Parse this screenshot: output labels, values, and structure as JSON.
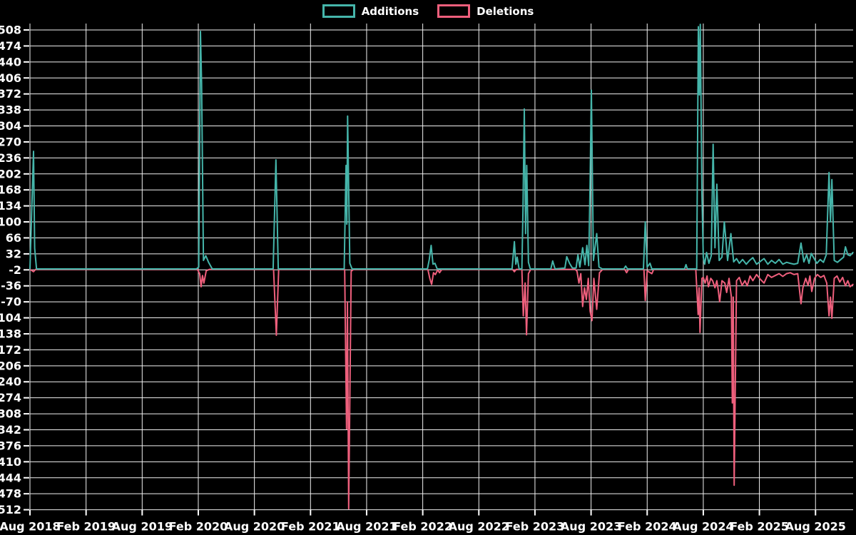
{
  "colors": {
    "background": "#000000",
    "grid": "#f2f2f2",
    "tick_text": "#ffffff",
    "additions": "#45b5aa",
    "deletions": "#ee5f7c"
  },
  "chart_data": {
    "type": "line",
    "title": "",
    "xlabel": "",
    "ylabel": "",
    "grid": true,
    "legend_position": "top-center",
    "x_unit": "months since Aug 2018 (weekly commit activity)",
    "ylim": [
      -512,
      508
    ],
    "y_ticks": [
      508,
      474,
      440,
      406,
      372,
      338,
      304,
      270,
      236,
      202,
      168,
      134,
      100,
      66,
      32,
      -2,
      -36,
      -70,
      -104,
      -138,
      -172,
      -206,
      -240,
      -274,
      -308,
      -342,
      -376,
      -410,
      -444,
      -478,
      -512
    ],
    "x_ticks": [
      {
        "label": "Aug 2018",
        "month": 0
      },
      {
        "label": "Feb 2019",
        "month": 6
      },
      {
        "label": "Aug 2019",
        "month": 12
      },
      {
        "label": "Feb 2020",
        "month": 18
      },
      {
        "label": "Aug 2020",
        "month": 24
      },
      {
        "label": "Feb 2021",
        "month": 30
      },
      {
        "label": "Aug 2021",
        "month": 36
      },
      {
        "label": "Feb 2022",
        "month": 42
      },
      {
        "label": "Aug 2022",
        "month": 48
      },
      {
        "label": "Feb 2023",
        "month": 54
      },
      {
        "label": "Aug 2023",
        "month": 60
      },
      {
        "label": "Feb 2024",
        "month": 66
      },
      {
        "label": "Aug 2024",
        "month": 72
      },
      {
        "label": "Feb 2025",
        "month": 78
      },
      {
        "label": "Aug 2025",
        "month": 84
      }
    ],
    "series": [
      {
        "name": "Additions",
        "color": "#45b5aa",
        "points": [
          [
            0,
            0
          ],
          [
            0.38,
            250
          ],
          [
            0.5,
            44
          ],
          [
            0.7,
            0
          ],
          [
            17.8,
            0
          ],
          [
            18.05,
            4
          ],
          [
            18.23,
            505
          ],
          [
            18.35,
            395
          ],
          [
            18.55,
            18
          ],
          [
            18.8,
            28
          ],
          [
            19.1,
            14
          ],
          [
            19.5,
            0
          ],
          [
            26.0,
            0
          ],
          [
            26.3,
            232
          ],
          [
            26.55,
            0
          ],
          [
            33.6,
            0
          ],
          [
            33.8,
            220
          ],
          [
            33.88,
            95
          ],
          [
            33.97,
            325
          ],
          [
            34.2,
            12
          ],
          [
            34.45,
            0
          ],
          [
            42.5,
            0
          ],
          [
            42.7,
            20
          ],
          [
            42.9,
            50
          ],
          [
            43.1,
            10
          ],
          [
            43.3,
            12
          ],
          [
            43.55,
            0
          ],
          [
            51.55,
            0
          ],
          [
            51.8,
            58
          ],
          [
            51.95,
            10
          ],
          [
            52.1,
            25
          ],
          [
            52.3,
            0
          ],
          [
            52.6,
            0
          ],
          [
            52.72,
            130
          ],
          [
            52.86,
            340
          ],
          [
            53.0,
            75
          ],
          [
            53.12,
            220
          ],
          [
            53.3,
            14
          ],
          [
            53.5,
            0
          ],
          [
            55.7,
            0
          ],
          [
            55.9,
            17
          ],
          [
            56.15,
            0
          ],
          [
            57.2,
            2
          ],
          [
            57.4,
            26
          ],
          [
            57.7,
            12
          ],
          [
            58.0,
            2
          ],
          [
            58.4,
            2
          ],
          [
            58.6,
            30
          ],
          [
            58.8,
            4
          ],
          [
            59.1,
            45
          ],
          [
            59.35,
            9
          ],
          [
            59.55,
            50
          ],
          [
            59.75,
            7
          ],
          [
            59.9,
            190
          ],
          [
            60.03,
            380
          ],
          [
            60.25,
            18
          ],
          [
            60.6,
            75
          ],
          [
            60.85,
            4
          ],
          [
            61.2,
            0
          ],
          [
            63.5,
            0
          ],
          [
            63.7,
            6
          ],
          [
            63.9,
            0
          ],
          [
            65.6,
            0
          ],
          [
            65.8,
            100
          ],
          [
            66.0,
            4
          ],
          [
            66.3,
            12
          ],
          [
            66.5,
            0
          ],
          [
            70.0,
            0
          ],
          [
            70.15,
            9
          ],
          [
            70.3,
            0
          ],
          [
            71.3,
            0
          ],
          [
            71.47,
            515
          ],
          [
            71.58,
            370
          ],
          [
            71.68,
            520
          ],
          [
            71.85,
            160
          ],
          [
            72.0,
            25
          ],
          [
            72.15,
            10
          ],
          [
            72.35,
            35
          ],
          [
            72.6,
            12
          ],
          [
            72.85,
            28
          ],
          [
            73.05,
            265
          ],
          [
            73.25,
            45
          ],
          [
            73.45,
            180
          ],
          [
            73.7,
            18
          ],
          [
            74.0,
            25
          ],
          [
            74.25,
            100
          ],
          [
            74.6,
            18
          ],
          [
            74.95,
            75
          ],
          [
            75.25,
            15
          ],
          [
            75.55,
            22
          ],
          [
            75.85,
            12
          ],
          [
            76.2,
            20
          ],
          [
            76.6,
            10
          ],
          [
            76.95,
            18
          ],
          [
            77.3,
            24
          ],
          [
            77.7,
            10
          ],
          [
            78.1,
            16
          ],
          [
            78.5,
            22
          ],
          [
            78.9,
            10
          ],
          [
            79.3,
            18
          ],
          [
            79.7,
            12
          ],
          [
            80.1,
            20
          ],
          [
            80.5,
            10
          ],
          [
            80.9,
            14
          ],
          [
            81.3,
            12
          ],
          [
            81.7,
            10
          ],
          [
            82.1,
            12
          ],
          [
            82.45,
            55
          ],
          [
            82.75,
            15
          ],
          [
            83.05,
            30
          ],
          [
            83.3,
            12
          ],
          [
            83.55,
            33
          ],
          [
            83.85,
            22
          ],
          [
            84.15,
            12
          ],
          [
            84.5,
            20
          ],
          [
            84.85,
            14
          ],
          [
            85.15,
            30
          ],
          [
            85.45,
            205
          ],
          [
            85.6,
            100
          ],
          [
            85.75,
            190
          ],
          [
            86.0,
            18
          ],
          [
            86.35,
            14
          ],
          [
            86.7,
            20
          ],
          [
            87.0,
            25
          ],
          [
            87.2,
            47
          ],
          [
            87.45,
            30
          ],
          [
            87.7,
            28
          ],
          [
            88.0,
            35
          ]
        ]
      },
      {
        "name": "Deletions",
        "color": "#ee5f7c",
        "points": [
          [
            0,
            -1
          ],
          [
            0.38,
            -6
          ],
          [
            0.6,
            -1
          ],
          [
            17.9,
            -1
          ],
          [
            18.15,
            -10
          ],
          [
            18.3,
            -38
          ],
          [
            18.45,
            -14
          ],
          [
            18.6,
            -30
          ],
          [
            18.85,
            -4
          ],
          [
            19.2,
            -1
          ],
          [
            26.05,
            -1
          ],
          [
            26.35,
            -141
          ],
          [
            26.6,
            -1
          ],
          [
            33.65,
            -1
          ],
          [
            33.85,
            -340
          ],
          [
            33.95,
            -70
          ],
          [
            34.08,
            -510
          ],
          [
            34.35,
            -5
          ],
          [
            34.6,
            -1
          ],
          [
            42.55,
            -1
          ],
          [
            42.75,
            -20
          ],
          [
            42.95,
            -33
          ],
          [
            43.15,
            -8
          ],
          [
            43.35,
            -12
          ],
          [
            43.6,
            -2
          ],
          [
            43.8,
            -8
          ],
          [
            44.05,
            -1
          ],
          [
            51.6,
            -1
          ],
          [
            51.8,
            -6
          ],
          [
            52.0,
            -1
          ],
          [
            52.6,
            -1
          ],
          [
            52.75,
            -100
          ],
          [
            52.95,
            -30
          ],
          [
            53.1,
            -140
          ],
          [
            53.3,
            -10
          ],
          [
            53.55,
            -1
          ],
          [
            58.3,
            -1
          ],
          [
            58.5,
            -5
          ],
          [
            58.7,
            -30
          ],
          [
            58.9,
            -10
          ],
          [
            59.1,
            -80
          ],
          [
            59.3,
            -40
          ],
          [
            59.5,
            -65
          ],
          [
            59.7,
            -20
          ],
          [
            59.9,
            -90
          ],
          [
            60.1,
            -110
          ],
          [
            60.3,
            -20
          ],
          [
            60.6,
            -86
          ],
          [
            60.9,
            -8
          ],
          [
            61.25,
            -1
          ],
          [
            63.6,
            -1
          ],
          [
            63.8,
            -8
          ],
          [
            64.0,
            -1
          ],
          [
            65.65,
            -1
          ],
          [
            65.8,
            -67
          ],
          [
            66.0,
            -4
          ],
          [
            66.5,
            -10
          ],
          [
            66.7,
            -1
          ],
          [
            71.2,
            -1
          ],
          [
            71.45,
            -97
          ],
          [
            71.55,
            -40
          ],
          [
            71.65,
            -135
          ],
          [
            71.85,
            -20
          ],
          [
            72.0,
            -18
          ],
          [
            72.2,
            -30
          ],
          [
            72.4,
            -15
          ],
          [
            72.55,
            -38
          ],
          [
            72.8,
            -20
          ],
          [
            73.0,
            -25
          ],
          [
            73.25,
            -40
          ],
          [
            73.45,
            -25
          ],
          [
            73.6,
            -45
          ],
          [
            73.75,
            -70
          ],
          [
            74.0,
            -25
          ],
          [
            74.3,
            -30
          ],
          [
            74.5,
            -50
          ],
          [
            74.75,
            -20
          ],
          [
            75.0,
            -60
          ],
          [
            75.1,
            -285
          ],
          [
            75.2,
            -60
          ],
          [
            75.3,
            -460
          ],
          [
            75.55,
            -25
          ],
          [
            75.85,
            -18
          ],
          [
            76.15,
            -35
          ],
          [
            76.45,
            -25
          ],
          [
            76.7,
            -36
          ],
          [
            77.0,
            -15
          ],
          [
            77.3,
            -25
          ],
          [
            77.7,
            -12
          ],
          [
            78.1,
            -22
          ],
          [
            78.5,
            -30
          ],
          [
            78.9,
            -12
          ],
          [
            79.3,
            -18
          ],
          [
            79.7,
            -14
          ],
          [
            80.1,
            -10
          ],
          [
            80.5,
            -16
          ],
          [
            80.9,
            -10
          ],
          [
            81.3,
            -8
          ],
          [
            81.7,
            -12
          ],
          [
            82.1,
            -10
          ],
          [
            82.45,
            -74
          ],
          [
            82.65,
            -40
          ],
          [
            82.95,
            -20
          ],
          [
            83.2,
            -35
          ],
          [
            83.4,
            -15
          ],
          [
            83.6,
            -48
          ],
          [
            83.9,
            -20
          ],
          [
            84.2,
            -12
          ],
          [
            84.55,
            -18
          ],
          [
            84.9,
            -14
          ],
          [
            85.2,
            -30
          ],
          [
            85.45,
            -100
          ],
          [
            85.6,
            -60
          ],
          [
            85.75,
            -105
          ],
          [
            86.0,
            -20
          ],
          [
            86.3,
            -15
          ],
          [
            86.6,
            -28
          ],
          [
            86.9,
            -18
          ],
          [
            87.2,
            -36
          ],
          [
            87.45,
            -25
          ],
          [
            87.7,
            -38
          ],
          [
            88.0,
            -33
          ]
        ]
      }
    ]
  }
}
